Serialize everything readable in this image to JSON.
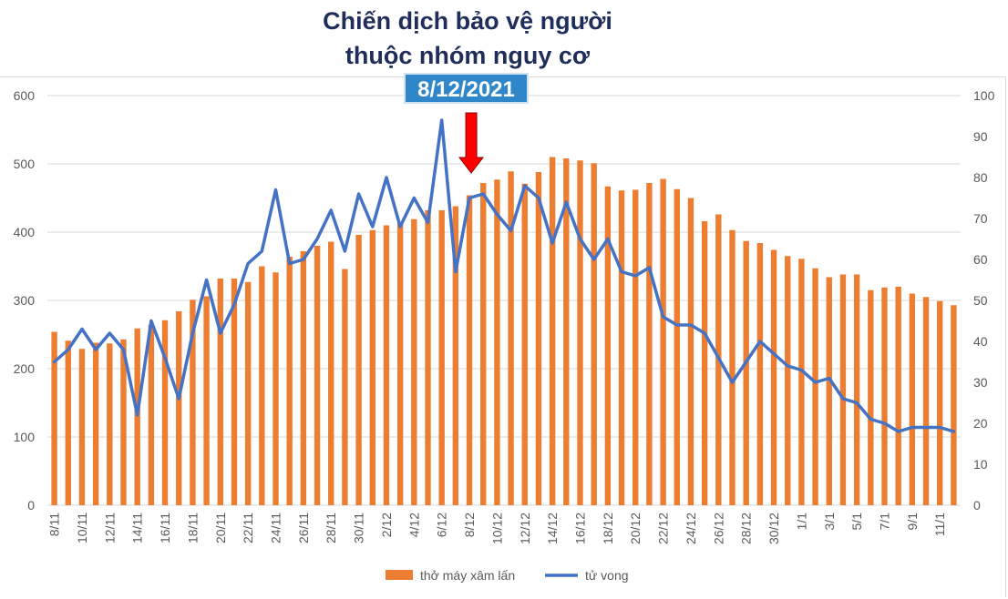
{
  "header": {
    "title_line1": "Chiến dịch bảo vệ người",
    "title_line2": "thuộc nhóm nguy cơ",
    "date_badge": "8/12/2021"
  },
  "colors": {
    "bar": "#ed7d31",
    "line": "#4472c4",
    "arrow": "#ff0000",
    "badge": "#2f86c8",
    "title": "#1f2d5a",
    "grid": "#d9d9d9"
  },
  "chart_data": {
    "type": "bar",
    "title": "Chiến dịch bảo vệ người thuộc nhóm nguy cơ",
    "xlabel": "",
    "ylabel": "",
    "ylim": [
      0,
      600
    ],
    "y2lim": [
      0,
      100
    ],
    "left_ticks": [
      "0",
      "100",
      "200",
      "300",
      "400",
      "500",
      "600"
    ],
    "right_ticks": [
      "0",
      "10",
      "20",
      "30",
      "40",
      "50",
      "60",
      "70",
      "80",
      "90",
      "100"
    ],
    "x_labels": [
      "8/11",
      "10/11",
      "12/11",
      "14/11",
      "16/11",
      "18/11",
      "20/11",
      "22/11",
      "24/11",
      "26/11",
      "28/11",
      "30/11",
      "2/12",
      "4/12",
      "6/12",
      "8/12",
      "10/12",
      "12/12",
      "14/12",
      "16/12",
      "18/12",
      "20/12",
      "22/12",
      "24/12",
      "26/12",
      "28/12",
      "30/12",
      "1/1",
      "3/1",
      "5/1",
      "7/1",
      "9/1",
      "11/1"
    ],
    "annotation": "8/12/2021",
    "annotation_index": 30,
    "series": [
      {
        "name": "thở máy xâm lấn",
        "axis": "left",
        "kind": "bar",
        "values": [
          254,
          241,
          229,
          238,
          237,
          243,
          259,
          264,
          271,
          284,
          301,
          306,
          332,
          332,
          327,
          350,
          341,
          364,
          372,
          380,
          386,
          346,
          396,
          403,
          410,
          414,
          419,
          432,
          432,
          438,
          454,
          472,
          477,
          489,
          471,
          488,
          510,
          508,
          505,
          501,
          467,
          461,
          462,
          472,
          478,
          463,
          450,
          416,
          426,
          403,
          387,
          384,
          374,
          365,
          361,
          347,
          334,
          338,
          338,
          315,
          319,
          320,
          310,
          305,
          299,
          293
        ]
      },
      {
        "name": "tử vong",
        "axis": "right",
        "kind": "line",
        "values": [
          35,
          38,
          43,
          38,
          42,
          38,
          22,
          45,
          36,
          26,
          42,
          55,
          42,
          49,
          59,
          62,
          77,
          59,
          60,
          65,
          72,
          62,
          76,
          68,
          80,
          68,
          75,
          69,
          94,
          57,
          75,
          76,
          71,
          67,
          78,
          75,
          64,
          74,
          65,
          60,
          65,
          57,
          56,
          58,
          46,
          44,
          44,
          42,
          36,
          30,
          35,
          40,
          37,
          34,
          33,
          30,
          31,
          26,
          25,
          21,
          20,
          18,
          19,
          19,
          19,
          18
        ]
      }
    ]
  }
}
